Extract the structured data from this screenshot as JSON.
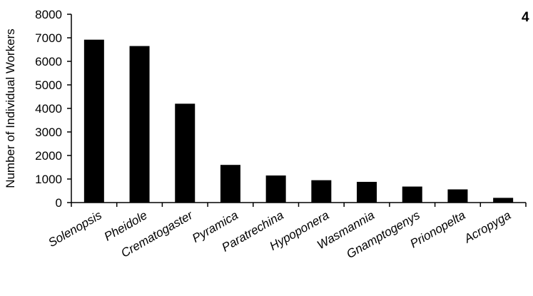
{
  "chart_data": {
    "type": "bar",
    "panel_label": "4",
    "ylabel": "Number of Individual Workers",
    "xlabel": "",
    "ylim": [
      0,
      8000
    ],
    "yticks": [
      "0",
      "1000",
      "2000",
      "3000",
      "4000",
      "5000",
      "6000",
      "7000",
      "8000"
    ],
    "categories": [
      "Solenopsis",
      "Pheidole",
      "Crematogaster",
      "Pyramica",
      "Paratrechina",
      "Hypoponera",
      "Wasmannia",
      "Gnamptogenys",
      "Prionopelta",
      "Acropyga"
    ],
    "values": [
      6920,
      6650,
      4200,
      1600,
      1150,
      950,
      880,
      680,
      560,
      200
    ],
    "grid": false,
    "bar_color": "#000000"
  }
}
